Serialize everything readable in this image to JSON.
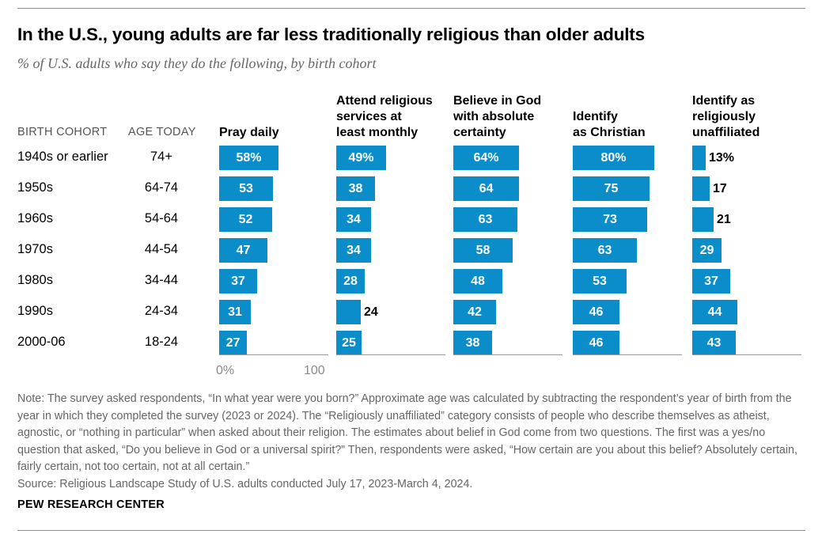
{
  "title": "In the U.S., young adults are far less traditionally religious than older adults",
  "subtitle": "% of U.S. adults who say they do the following, by birth cohort",
  "table_headers": {
    "cohort": "BIRTH COHORT",
    "age": "AGE TODAY"
  },
  "axis": {
    "min_label": "0%",
    "max_label": "100"
  },
  "note": "Note: The survey asked respondents, “In what year were you born?” Approximate age was calculated by subtracting the respondent’s year of birth from the year in which they completed the survey (2023 or 2024). The “Religiously unaffiliated” category consists of people who describe themselves as atheist, agnostic, or “nothing in particular” when asked about their religion. The estimates about belief in God come from two questions. The first was a yes/no question that asked, “Do you believe in God or a universal spirit?” Then, respondents were asked, “How certain are you about this belief? Absolutely certain, fairly certain, not too certain, not at all certain.”",
  "source": "Source: Religious Landscape Study of U.S. adults conducted July 17, 2023-March 4, 2024.",
  "brand": "PEW RESEARCH CENTER",
  "colors": {
    "bar": "#0a8dc9"
  },
  "chart_data": {
    "type": "bar",
    "orientation": "horizontal",
    "categories": [
      "1940s or earlier",
      "1950s",
      "1960s",
      "1970s",
      "1980s",
      "1990s",
      "2000-06"
    ],
    "ages": [
      "74+",
      "64-74",
      "54-64",
      "44-54",
      "34-44",
      "24-34",
      "18-24"
    ],
    "xlim": [
      0,
      100
    ],
    "series": [
      {
        "name": "Pray daily",
        "values": [
          58,
          53,
          52,
          47,
          37,
          31,
          27
        ],
        "labels": [
          "58%",
          "53",
          "52",
          "47",
          "37",
          "31",
          "27"
        ]
      },
      {
        "name": "Attend religious services at least monthly",
        "values": [
          49,
          38,
          34,
          34,
          28,
          24,
          25
        ],
        "labels": [
          "49%",
          "38",
          "34",
          "34",
          "28",
          "24",
          "25"
        ]
      },
      {
        "name": "Believe in God with absolute certainty",
        "values": [
          64,
          64,
          63,
          58,
          48,
          42,
          38
        ],
        "labels": [
          "64%",
          "64",
          "63",
          "58",
          "48",
          "42",
          "38"
        ]
      },
      {
        "name": "Identify as Christian",
        "values": [
          80,
          75,
          73,
          63,
          53,
          46,
          46
        ],
        "labels": [
          "80%",
          "75",
          "73",
          "63",
          "53",
          "46",
          "46"
        ]
      },
      {
        "name": "Identify as religiously unaffiliated",
        "values": [
          13,
          17,
          21,
          29,
          37,
          44,
          43
        ],
        "labels": [
          "13%",
          "17",
          "21",
          "29",
          "37",
          "44",
          "43"
        ]
      }
    ]
  }
}
